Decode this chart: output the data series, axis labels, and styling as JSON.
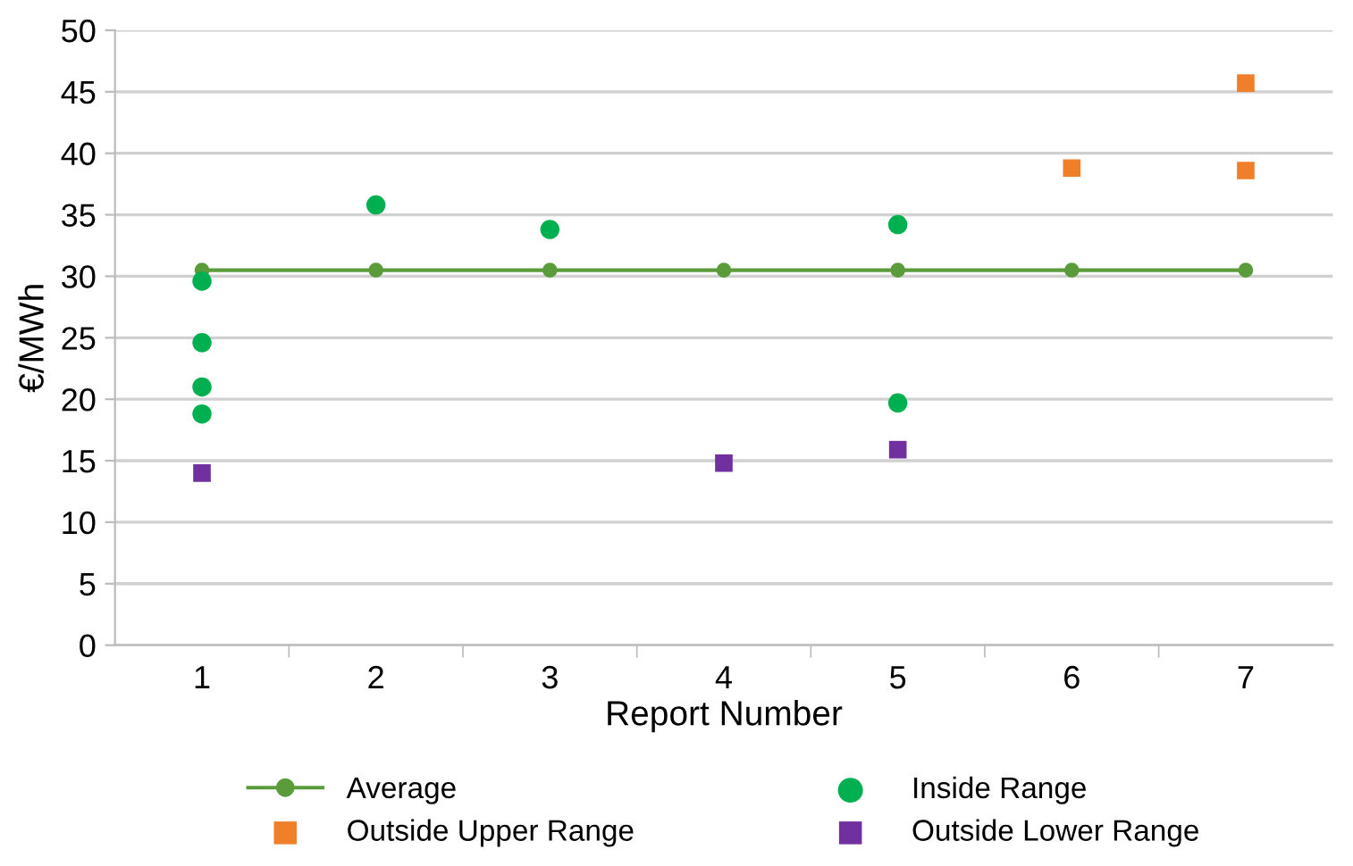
{
  "chart_data": {
    "type": "scatter",
    "xlabel": "Report Number",
    "ylabel": "€/MWh",
    "categories": [
      "1",
      "2",
      "3",
      "4",
      "5",
      "6",
      "7"
    ],
    "ylim": [
      0,
      50
    ],
    "yticks": [
      0,
      5,
      10,
      15,
      20,
      25,
      30,
      35,
      40,
      45,
      50
    ],
    "grid": "y",
    "legend": "bottom",
    "series": [
      {
        "name": "Average",
        "type": "line",
        "color": "#5b9b3c",
        "marker": "circle",
        "line_style": "solid",
        "values": [
          30.5,
          30.5,
          30.5,
          30.5,
          30.5,
          30.5,
          30.5
        ]
      },
      {
        "name": "Inside Range",
        "color": "#00b050",
        "marker": "circle",
        "x": [
          "1",
          "1",
          "1",
          "1",
          "2",
          "3",
          "5",
          "5"
        ],
        "values": [
          29.6,
          24.6,
          21.0,
          18.8,
          35.8,
          33.8,
          34.2,
          19.7
        ]
      },
      {
        "name": "Outside Upper Range",
        "color": "#f07f2a",
        "marker": "square",
        "x": [
          "6",
          "7",
          "7"
        ],
        "values": [
          38.8,
          45.7,
          38.6
        ]
      },
      {
        "name": "Outside Lower Range",
        "color": "#7030a0",
        "marker": "square",
        "x": [
          "1",
          "4",
          "5"
        ],
        "values": [
          14.0,
          14.8,
          15.9
        ]
      }
    ]
  }
}
